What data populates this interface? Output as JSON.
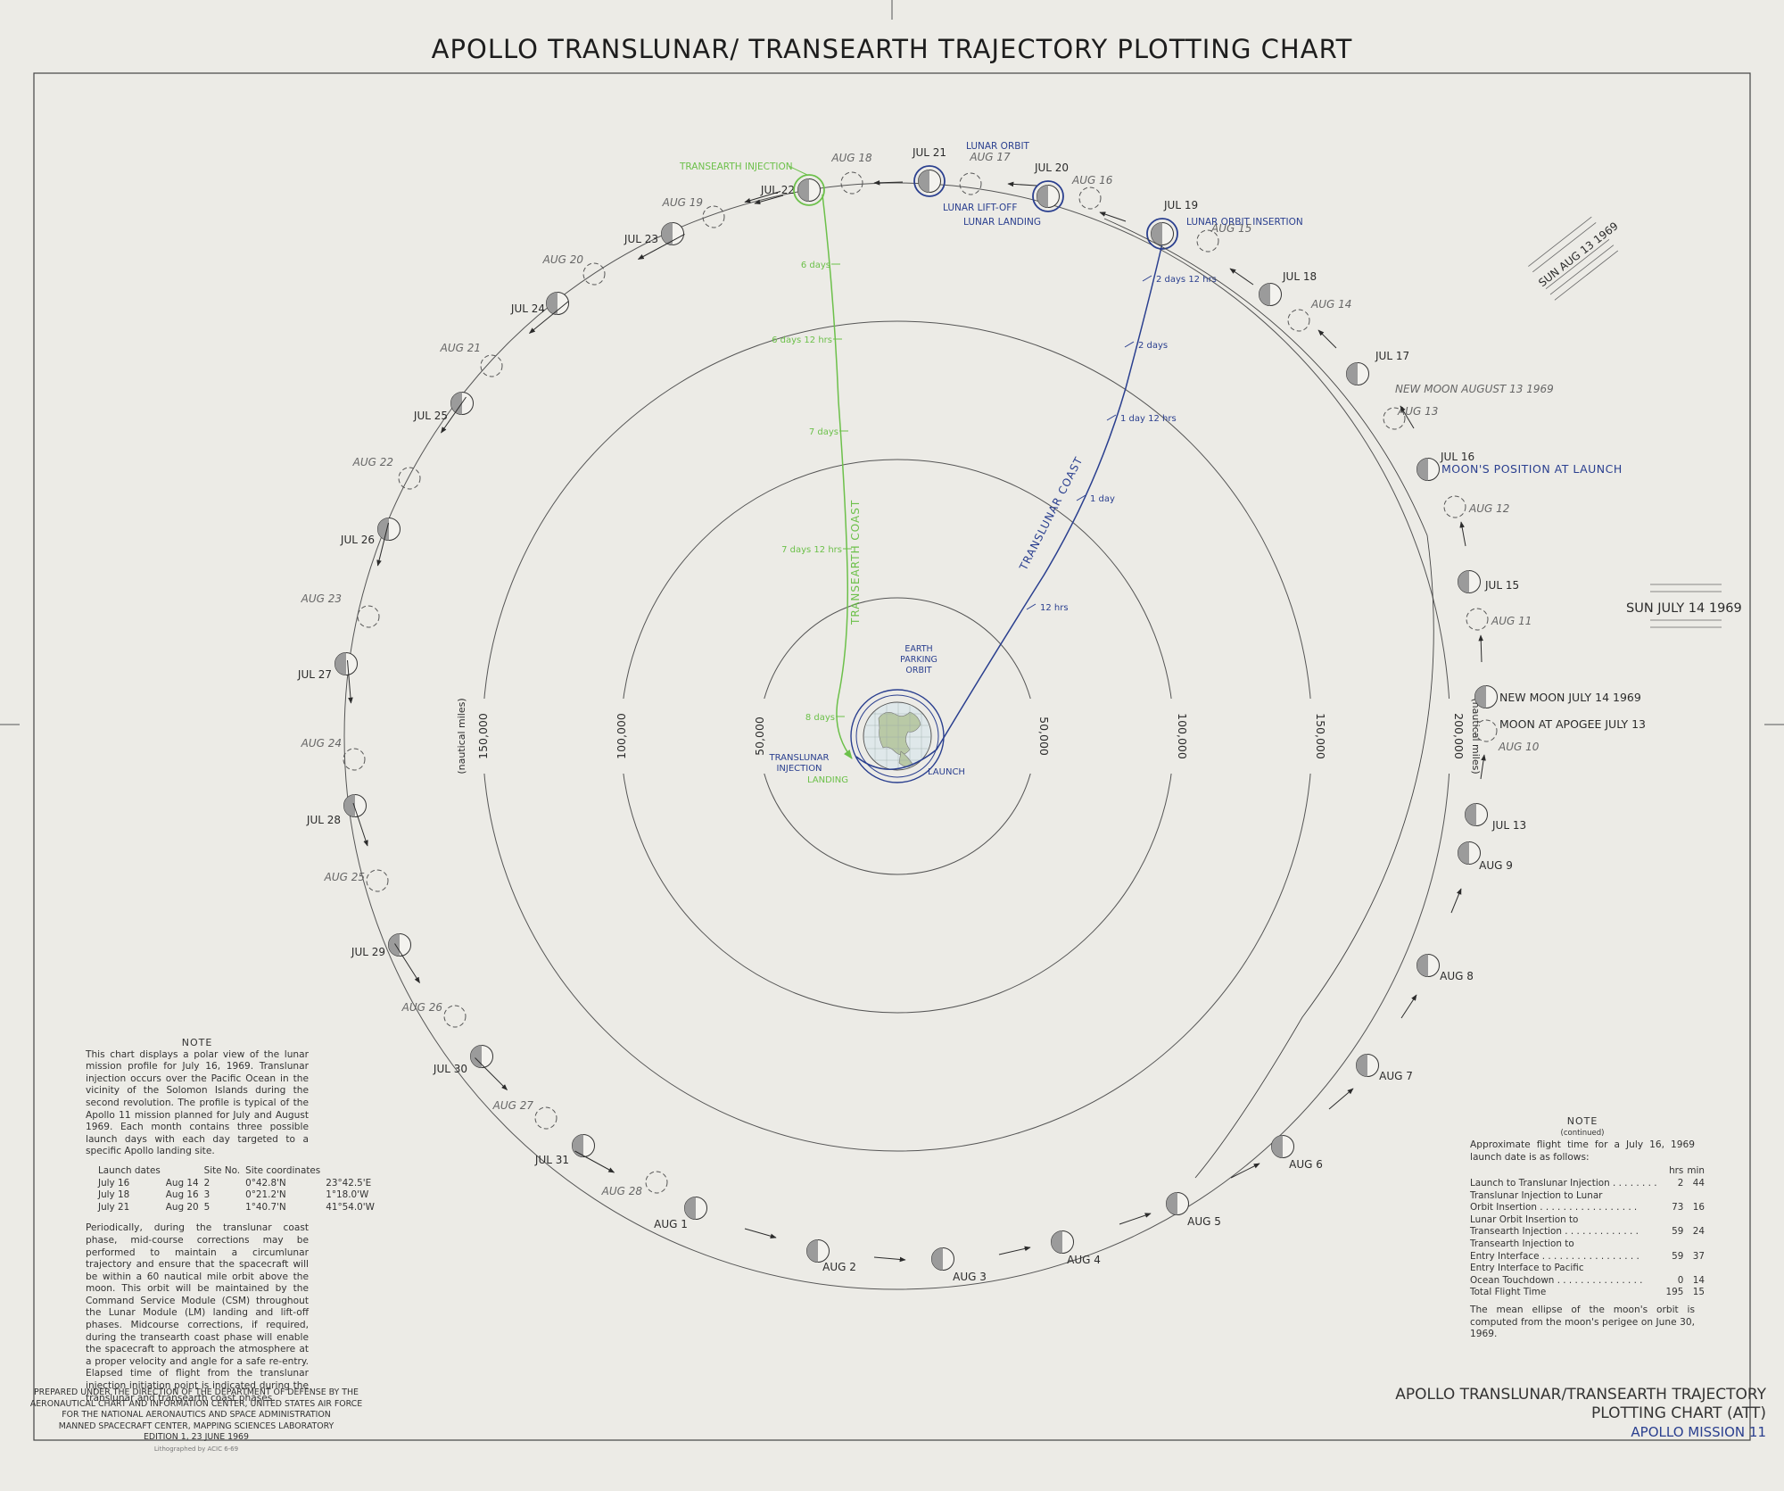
{
  "title": "APOLLO TRANSLUNAR/ TRANSEARTH TRAJECTORY PLOTTING CHART",
  "colors": {
    "paper": "#ecebe6",
    "ink": "#2b2b2b",
    "translunar": "#2a3f8f",
    "transearth": "#6cc04a"
  },
  "rings": [
    {
      "label": "50,000",
      "side": "right"
    },
    {
      "label": "50,000",
      "side": "left"
    },
    {
      "label": "100,000",
      "side": "right"
    },
    {
      "label": "100,000",
      "side": "left"
    },
    {
      "label": "150,000",
      "side": "right"
    },
    {
      "label": "150,000",
      "side": "left"
    },
    {
      "label": "200,000",
      "side": "right"
    }
  ],
  "ring_unit": "(nautical miles)",
  "earth": {
    "parking_orbit_label": "EARTH\nPARKING\nORBIT",
    "launch_label": "LAUNCH",
    "tli_label": "TRANSLUNAR\nINJECTION",
    "landing_label": "LANDING"
  },
  "translunar": {
    "label": "TRANSLUNAR COAST",
    "ticks": [
      "12 hrs",
      "1 day",
      "1 day 12 hrs",
      "2 days",
      "2 days 12 hrs"
    ]
  },
  "transearth": {
    "label": "TRANSEARTH COAST",
    "ticks": [
      "6 days",
      "6 days 12 hrs",
      "7 days",
      "7 days 12 hrs",
      "8 days"
    ]
  },
  "events": {
    "loi": "LUNAR ORBIT INSERTION",
    "lunar_orbit": "LUNAR ORBIT",
    "liftoff": "LUNAR LIFT-OFF",
    "landing": "LUNAR LANDING",
    "tei": "TRANSEARTH INJECTION"
  },
  "july_moons": [
    "JUL 13",
    "JUL 15",
    "JUL 16",
    "JUL 17",
    "JUL 18",
    "JUL 19",
    "JUL 20",
    "JUL 21",
    "JUL 22",
    "JUL 23",
    "JUL 24",
    "JUL 25",
    "JUL 26",
    "JUL 27",
    "JUL 28",
    "JUL 29",
    "JUL 30",
    "JUL 31"
  ],
  "august_moons": [
    "AUG 1",
    "AUG 2",
    "AUG 3",
    "AUG 4",
    "AUG 5",
    "AUG 6",
    "AUG 7",
    "AUG 8",
    "AUG 9"
  ],
  "august_ghosts": [
    "AUG 10",
    "AUG 11",
    "AUG 12",
    "AUG 13",
    "AUG 14",
    "AUG 15",
    "AUG 16",
    "AUG 17",
    "AUG 18",
    "AUG 19",
    "AUG 20",
    "AUG 21",
    "AUG 22",
    "AUG 23",
    "AUG 24",
    "AUG 25",
    "AUG 26",
    "AUG 27",
    "AUG 28"
  ],
  "callouts": {
    "moon_at_launch": "MOON'S POSITION AT LAUNCH",
    "new_moon_aug": "NEW MOON AUGUST 13 1969",
    "new_moon_jul": "NEW MOON JULY 14 1969",
    "apogee": "MOON AT APOGEE JULY 13"
  },
  "sun": {
    "jul": "SUN JULY 14 1969",
    "aug": "SUN AUG 13 1969"
  },
  "note_left": {
    "heading": "NOTE",
    "p1": "This chart displays a polar view of the lunar mission profile for July 16, 1969. Translunar injection occurs over the Pacific Ocean in the vicinity of the Solomon Islands during the second revolution. The profile is typical of the Apollo 11 mission planned for July and August 1969. Each month contains three possible launch days with each day targeted to a specific Apollo landing site.",
    "table_head": [
      "Launch dates",
      "",
      "Site No.",
      "Site coordinates",
      ""
    ],
    "table": [
      [
        "July 16",
        "Aug 14",
        "2",
        "0°42.8'N",
        "23°42.5'E"
      ],
      [
        "July 18",
        "Aug 16",
        "3",
        "0°21.2'N",
        "1°18.0'W"
      ],
      [
        "July 21",
        "Aug 20",
        "5",
        "1°40.7'N",
        "41°54.0'W"
      ]
    ],
    "p2": "Periodically, during the translunar coast phase, mid-course corrections may be performed to maintain a circumlunar trajectory and ensure that the spacecraft will be within a 60 nautical mile orbit above the moon. This orbit will be maintained by the Command Service Module (CSM) throughout the Lunar Module (LM) landing and lift-off phases. Midcourse corrections, if required, during the transearth coast phase will enable the spacecraft to approach the atmosphere at a proper velocity and angle for a safe re-entry. Elapsed time of flight from the translunar injection initiation point is indicated during the translunar and transearth coast phases."
  },
  "note_right": {
    "heading": "NOTE",
    "sub": "(continued)",
    "intro": "Approximate flight time for a July 16, 1969 launch date is as follows:",
    "col_hrs": "hrs",
    "col_min": "min",
    "rows": [
      {
        "label": "Launch to Translunar Injection . . . . . . . .",
        "hrs": "2",
        "min": "44"
      },
      {
        "label": "Translunar Injection to Lunar",
        "hrs": "",
        "min": ""
      },
      {
        "label": "    Orbit Insertion . . . . . . . . . . . . . . . . .",
        "hrs": "73",
        "min": "16"
      },
      {
        "label": "Lunar Orbit Insertion to",
        "hrs": "",
        "min": ""
      },
      {
        "label": "    Transearth Injection . . . . . . . . . . . . .",
        "hrs": "59",
        "min": "24"
      },
      {
        "label": "Transearth Injection to",
        "hrs": "",
        "min": ""
      },
      {
        "label": "    Entry Interface . . . . . . . . . . . . . . . . .",
        "hrs": "59",
        "min": "37"
      },
      {
        "label": "Entry Interface to Pacific",
        "hrs": "",
        "min": ""
      },
      {
        "label": "    Ocean Touchdown . . . . . . . . . . . . . . .",
        "hrs": "0",
        "min": "14"
      },
      {
        "label": "Total Flight Time",
        "hrs": "195",
        "min": "15"
      }
    ],
    "footer": "The mean ellipse of the moon's orbit is computed from the moon's perigee on June 30, 1969."
  },
  "credit": {
    "lines": [
      "PREPARED UNDER THE DIRECTION OF THE DEPARTMENT OF DEFENSE BY THE",
      "AERONAUTICAL CHART AND INFORMATION CENTER, UNITED STATES AIR FORCE",
      "FOR THE NATIONAL AERONAUTICS AND SPACE ADMINISTRATION",
      "MANNED SPACECRAFT CENTER, MAPPING SCIENCES LABORATORY",
      "EDITION 1, 23 JUNE 1969"
    ],
    "litho": "Lithographed by ACIC 6-69"
  },
  "title_block": {
    "line1": "APOLLO TRANSLUNAR/TRANSEARTH TRAJECTORY",
    "line2": "PLOTTING CHART (ATT)",
    "mission": "APOLLO MISSION 11"
  }
}
